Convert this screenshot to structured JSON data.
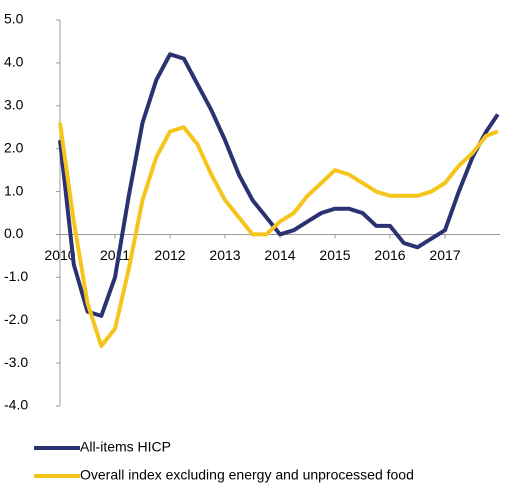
{
  "chart_data": {
    "type": "line",
    "x": [
      2010,
      2010.25,
      2010.5,
      2010.75,
      2011,
      2011.25,
      2011.5,
      2011.75,
      2012,
      2012.25,
      2012.5,
      2012.75,
      2013,
      2013.25,
      2013.5,
      2013.75,
      2014,
      2014.25,
      2014.5,
      2014.75,
      2015,
      2015.25,
      2015.5,
      2015.75,
      2016,
      2016.25,
      2016.5,
      2016.75,
      2017,
      2017.25,
      2017.5,
      2017.75,
      2017.96
    ],
    "series": [
      {
        "name": "All-items HICP",
        "color": "#2b3272",
        "values": [
          2.2,
          -0.7,
          -1.8,
          -1.9,
          -1.0,
          0.9,
          2.6,
          3.6,
          4.2,
          4.1,
          3.5,
          2.9,
          2.2,
          1.4,
          0.8,
          0.4,
          0.0,
          0.1,
          0.3,
          0.5,
          0.6,
          0.6,
          0.5,
          0.2,
          0.2,
          -0.2,
          -0.3,
          -0.1,
          0.1,
          1.0,
          1.8,
          2.4,
          2.8
        ]
      },
      {
        "name": "Overall index excluding energy and unprocessed food",
        "color": "#f6c51b",
        "values": [
          2.6,
          0.3,
          -1.6,
          -2.6,
          -2.2,
          -0.8,
          0.8,
          1.8,
          2.4,
          2.5,
          2.1,
          1.4,
          0.8,
          0.4,
          0.0,
          0.0,
          0.3,
          0.5,
          0.9,
          1.2,
          1.5,
          1.4,
          1.2,
          1.0,
          0.9,
          0.9,
          0.9,
          1.0,
          1.2,
          1.6,
          1.9,
          2.3,
          2.4
        ]
      }
    ],
    "xlim": [
      2010,
      2018
    ],
    "xticks": [
      2010,
      2011,
      2012,
      2013,
      2014,
      2015,
      2016,
      2017
    ],
    "ylim": [
      -4,
      5
    ],
    "yticks": [
      {
        "value": 5,
        "label": "5.0"
      },
      {
        "value": 4,
        "label": "4.0"
      },
      {
        "value": 3,
        "label": "3.0"
      },
      {
        "value": 2,
        "label": "2.0"
      },
      {
        "value": 1,
        "label": "1.0"
      },
      {
        "value": 0,
        "label": "0.0"
      },
      {
        "value": -1,
        "label": "-1.0"
      },
      {
        "value": -2,
        "label": "-2.0"
      },
      {
        "value": -3,
        "label": "-3.0"
      },
      {
        "value": -4,
        "label": "-4.0"
      }
    ]
  }
}
